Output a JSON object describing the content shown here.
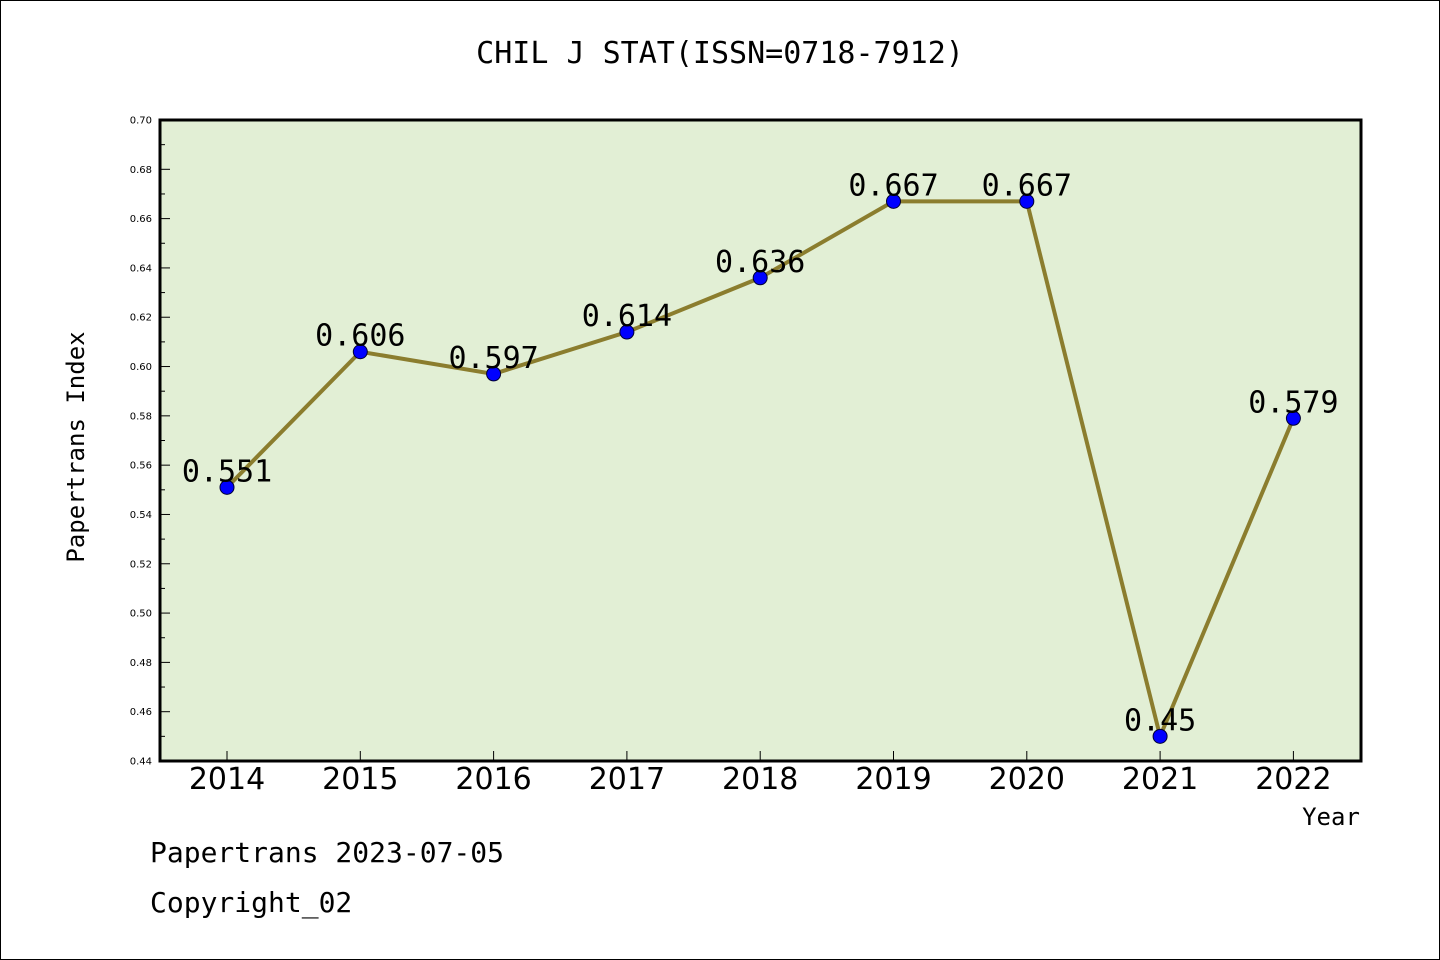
{
  "chart_data": {
    "type": "line",
    "title": "CHIL J STAT(ISSN=0718-7912)",
    "xlabel": "Year",
    "ylabel": "Papertrans Index",
    "categories": [
      "2014",
      "2015",
      "2016",
      "2017",
      "2018",
      "2019",
      "2020",
      "2021",
      "2022"
    ],
    "values": [
      0.551,
      0.606,
      0.597,
      0.614,
      0.636,
      0.667,
      0.667,
      0.45,
      0.579
    ],
    "data_labels": [
      "0.551",
      "0.606",
      "0.597",
      "0.614",
      "0.636",
      "0.667",
      "0.667",
      "0.45",
      "0.579"
    ],
    "ylim": [
      0.44,
      0.7
    ],
    "yticks": [
      "0.44",
      "0.46",
      "0.48",
      "0.50",
      "0.52",
      "0.54",
      "0.56",
      "0.58",
      "0.60",
      "0.62",
      "0.64",
      "0.66",
      "0.68",
      "0.70"
    ],
    "line_color": "#8b7d2e",
    "marker_color": "#0000ff",
    "plot_background": "#e2efd5"
  },
  "footer": {
    "line1": "Papertrans 2023-07-05",
    "line2": "Copyright_02"
  }
}
